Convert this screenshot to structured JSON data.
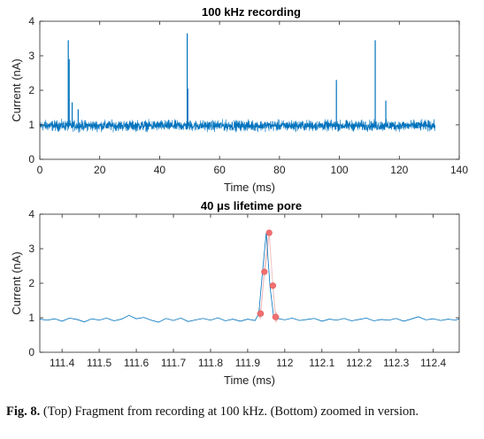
{
  "chart_data": [
    {
      "type": "line",
      "title": "100 kHz recording",
      "xlabel": "Time (ms)",
      "ylabel": "Current (nA)",
      "xlim": [
        0,
        140
      ],
      "ylim": [
        0,
        4
      ],
      "xticks": [
        "0",
        "20",
        "40",
        "60",
        "80",
        "100",
        "120",
        "140"
      ],
      "yticks": [
        "0",
        "1",
        "2",
        "3",
        "4"
      ],
      "line_color": "#0072BD",
      "series": [
        {
          "baseline_nA": 0.95,
          "x_range": [
            0,
            132
          ],
          "noise_band_nA": [
            0.75,
            1.2
          ],
          "spikes": [
            {
              "x": 9.5,
              "y": 3.45
            },
            {
              "x": 9.8,
              "y": 2.9
            },
            {
              "x": 10.8,
              "y": 1.65
            },
            {
              "x": 12.8,
              "y": 1.45
            },
            {
              "x": 49.2,
              "y": 3.65
            },
            {
              "x": 49.4,
              "y": 2.05
            },
            {
              "x": 99.0,
              "y": 2.3
            },
            {
              "x": 111.96,
              "y": 3.45
            },
            {
              "x": 115.5,
              "y": 1.7
            }
          ]
        }
      ]
    },
    {
      "type": "line",
      "title": "40 μs lifetime pore",
      "xlabel": "Time (ms)",
      "ylabel": "Current (nA)",
      "xlim": [
        111.34,
        112.47
      ],
      "ylim": [
        0,
        4
      ],
      "xticks": [
        "111.4",
        "111.5",
        "111.6",
        "111.7",
        "111.8",
        "111.9",
        "112",
        "112.1",
        "112.2",
        "112.3",
        "112.4"
      ],
      "yticks": [
        "0",
        "1",
        "2",
        "3",
        "4"
      ],
      "line_color": "#0072BD",
      "highlight_color": "#e8a0a0",
      "marker_color": "#f07070",
      "series": [
        {
          "x": [
            111.34,
            111.36,
            111.38,
            111.4,
            111.42,
            111.44,
            111.46,
            111.48,
            111.5,
            111.52,
            111.54,
            111.56,
            111.58,
            111.6,
            111.62,
            111.64,
            111.66,
            111.68,
            111.7,
            111.72,
            111.74,
            111.76,
            111.78,
            111.8,
            111.82,
            111.84,
            111.86,
            111.88,
            111.9,
            111.92,
            111.93,
            111.94,
            111.95,
            111.96,
            111.97,
            111.98,
            112.0,
            112.02,
            112.04,
            112.06,
            112.08,
            112.1,
            112.12,
            112.14,
            112.16,
            112.18,
            112.2,
            112.22,
            112.24,
            112.26,
            112.28,
            112.3,
            112.32,
            112.34,
            112.36,
            112.38,
            112.4,
            112.42,
            112.44,
            112.46,
            112.47
          ],
          "y": [
            0.96,
            0.93,
            0.97,
            0.9,
            0.99,
            0.95,
            0.88,
            0.97,
            0.93,
            0.99,
            0.91,
            0.96,
            1.07,
            0.97,
            1.01,
            0.93,
            0.87,
            0.98,
            0.92,
            0.99,
            0.89,
            0.94,
            0.98,
            0.93,
            1.0,
            0.91,
            0.96,
            0.9,
            0.96,
            0.92,
            1.12,
            2.33,
            3.46,
            1.93,
            1.02,
            0.98,
            0.94,
            0.99,
            0.92,
            0.95,
            0.98,
            0.9,
            0.96,
            0.93,
            0.98,
            0.91,
            0.95,
            0.99,
            0.91,
            0.95,
            0.93,
            0.98,
            0.9,
            0.96,
            1.03,
            0.94,
            0.97,
            0.92,
            0.96,
            0.93,
            0.97
          ]
        }
      ],
      "markers": [
        {
          "x": 111.935,
          "y": 1.12
        },
        {
          "x": 111.945,
          "y": 2.33
        },
        {
          "x": 111.958,
          "y": 3.46
        },
        {
          "x": 111.968,
          "y": 1.93
        },
        {
          "x": 111.975,
          "y": 1.02
        }
      ]
    }
  ],
  "caption": {
    "label": "Fig. 8.",
    "text": "(Top) Fragment from recording at 100 kHz. (Bottom) zoomed in version."
  }
}
